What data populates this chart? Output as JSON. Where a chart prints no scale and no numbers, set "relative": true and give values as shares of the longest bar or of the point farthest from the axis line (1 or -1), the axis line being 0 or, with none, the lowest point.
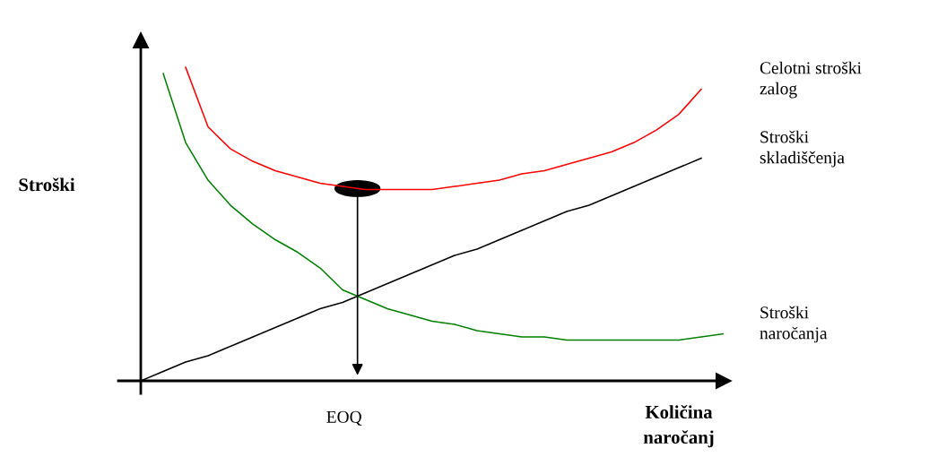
{
  "chart_data": {
    "type": "line",
    "relative": true,
    "ylabel": "Stroški",
    "xlabel": "Količina naročanj",
    "categories": [
      null,
      null,
      null,
      null,
      null,
      null,
      null,
      null,
      null,
      null,
      null,
      null,
      null,
      null,
      null,
      null,
      null,
      null,
      null,
      null,
      null,
      null,
      null,
      null,
      null,
      null,
      null
    ],
    "series": [
      {
        "name": "Celotni stroški zalog",
        "color": "#ff0000",
        "values": [
          null,
          null,
          1.0,
          0.81,
          0.74,
          0.7,
          0.67,
          0.65,
          0.63,
          0.62,
          0.61,
          0.61,
          0.61,
          0.61,
          0.62,
          0.63,
          0.64,
          0.66,
          0.67,
          0.69,
          0.71,
          0.73,
          0.76,
          0.8,
          0.85,
          0.93,
          null
        ]
      },
      {
        "name": "Stroški skladiščenja",
        "color": "#000000",
        "values": [
          0,
          0.03,
          0.06,
          0.08,
          0.11,
          0.14,
          0.17,
          0.2,
          0.23,
          0.25,
          0.28,
          0.31,
          0.34,
          0.37,
          0.4,
          0.42,
          0.45,
          0.48,
          0.51,
          0.54,
          0.56,
          0.59,
          0.62,
          0.65,
          0.68,
          0.71,
          null
        ]
      },
      {
        "name": "Stroški naročanja",
        "color": "#008000",
        "values": [
          null,
          0.98,
          0.76,
          0.64,
          0.56,
          0.5,
          0.45,
          0.41,
          0.36,
          0.29,
          0.26,
          0.23,
          0.21,
          0.19,
          0.18,
          0.16,
          0.15,
          0.14,
          0.14,
          0.13,
          0.13,
          0.13,
          0.13,
          0.13,
          0.13,
          0.14,
          0.15
        ]
      }
    ],
    "annotations": [
      "EOQ"
    ],
    "legend": false,
    "marker": "none",
    "line_style": "solid"
  }
}
